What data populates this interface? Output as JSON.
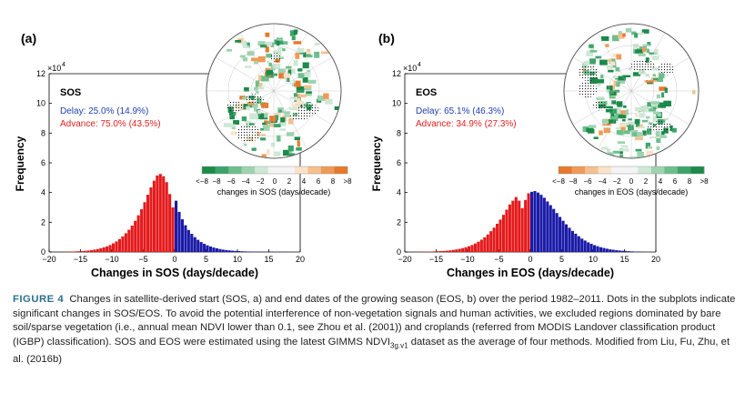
{
  "panels": [
    {
      "letter": "(a)",
      "legend_title": "SOS",
      "delay_text": "Delay: 25.0% (14.9%)",
      "advance_text": "Advance: 75.0% (43.5%)",
      "xlabel": "Changes in SOS (days/decade)",
      "ylabel": "Frequency",
      "y_multiplier": "×10",
      "y_exponent": "4",
      "colorbar_label": "changes in SOS (days/decade)",
      "colorbar_ticks": [
        "<−8",
        "−8",
        "−6",
        "−4",
        "−2",
        "0",
        "2",
        "4",
        "6",
        "8",
        ">8"
      ],
      "colorbar_reversed": false
    },
    {
      "letter": "(b)",
      "legend_title": "EOS",
      "delay_text": "Delay: 65.1% (46.3%)",
      "advance_text": "Advance: 34.9% (27.3%)",
      "xlabel": "Changes in EOS (days/decade)",
      "ylabel": "Frequency",
      "y_multiplier": "×10",
      "y_exponent": "4",
      "colorbar_label": "changes in EOS (days/decade)",
      "colorbar_ticks": [
        "<−8",
        "−8",
        "−6",
        "−4",
        "−2",
        "0",
        "2",
        "4",
        "6",
        "8",
        ">8"
      ],
      "colorbar_reversed": true
    }
  ],
  "colors": {
    "advance_red": "#e41a1c",
    "delay_blue": "#1a1aa8",
    "delay_text_blue": "#1f3fb0",
    "advance_text_red": "#e02020",
    "green_dark": "#1b8a4a",
    "orange_dark": "#e8782a"
  },
  "chart_data": [
    {
      "type": "bar",
      "panel": "a",
      "xlim": [
        -20,
        20
      ],
      "ylim": [
        0,
        12
      ],
      "y_scale_factor": 10000,
      "xticks": [
        -20,
        -15,
        -10,
        -5,
        0,
        5,
        10,
        15,
        20
      ],
      "yticks": [
        0,
        2,
        4,
        6,
        8,
        10,
        12
      ],
      "bin_width": 0.5,
      "bin_centers": [
        -17.75,
        -17.25,
        -16.75,
        -16.25,
        -15.75,
        -15.25,
        -14.75,
        -14.25,
        -13.75,
        -13.25,
        -12.75,
        -12.25,
        -11.75,
        -11.25,
        -10.75,
        -10.25,
        -9.75,
        -9.25,
        -8.75,
        -8.25,
        -7.75,
        -7.25,
        -6.75,
        -6.25,
        -5.75,
        -5.25,
        -4.75,
        -4.25,
        -3.75,
        -3.25,
        -2.75,
        -2.25,
        -1.75,
        -1.25,
        -0.75,
        -0.25,
        0.25,
        0.75,
        1.25,
        1.75,
        2.25,
        2.75,
        3.25,
        3.75,
        4.25,
        4.75,
        5.25,
        5.75,
        6.25,
        6.75,
        7.25,
        7.75,
        8.25,
        8.75,
        9.25,
        9.75,
        10.25,
        10.75,
        11.25,
        11.75,
        12.25,
        12.75,
        13.25,
        13.75,
        14.25,
        14.75,
        15.25,
        15.75,
        16.25,
        16.75,
        17.25,
        17.75
      ],
      "values": [
        0.01,
        0.02,
        0.02,
        0.03,
        0.04,
        0.05,
        0.06,
        0.08,
        0.1,
        0.12,
        0.16,
        0.2,
        0.25,
        0.31,
        0.38,
        0.47,
        0.58,
        0.71,
        0.87,
        1.05,
        1.26,
        1.5,
        1.78,
        2.1,
        2.47,
        2.88,
        3.35,
        3.85,
        4.35,
        4.8,
        5.15,
        5.25,
        5.1,
        4.7,
        3.9,
        3.0,
        3.45,
        2.7,
        2.2,
        1.8,
        1.48,
        1.22,
        1.0,
        0.82,
        0.67,
        0.55,
        0.45,
        0.37,
        0.3,
        0.25,
        0.2,
        0.16,
        0.13,
        0.11,
        0.09,
        0.07,
        0.06,
        0.05,
        0.04,
        0.03,
        0.03,
        0.02,
        0.02,
        0.02,
        0.01,
        0.01,
        0.01,
        0.01,
        0.01,
        0.01,
        0.01,
        0.01
      ],
      "series": [
        {
          "name": "Advance",
          "range": "x < 0"
        },
        {
          "name": "Delay",
          "range": "x > 0"
        }
      ]
    },
    {
      "type": "bar",
      "panel": "b",
      "xlim": [
        -20,
        20
      ],
      "ylim": [
        0,
        12
      ],
      "y_scale_factor": 10000,
      "xticks": [
        -20,
        -15,
        -10,
        -5,
        0,
        5,
        10,
        15,
        20
      ],
      "yticks": [
        0,
        2,
        4,
        6,
        8,
        10,
        12
      ],
      "bin_width": 0.5,
      "bin_centers": [
        -17.75,
        -17.25,
        -16.75,
        -16.25,
        -15.75,
        -15.25,
        -14.75,
        -14.25,
        -13.75,
        -13.25,
        -12.75,
        -12.25,
        -11.75,
        -11.25,
        -10.75,
        -10.25,
        -9.75,
        -9.25,
        -8.75,
        -8.25,
        -7.75,
        -7.25,
        -6.75,
        -6.25,
        -5.75,
        -5.25,
        -4.75,
        -4.25,
        -3.75,
        -3.25,
        -2.75,
        -2.25,
        -1.75,
        -1.25,
        -0.75,
        -0.25,
        0.25,
        0.75,
        1.25,
        1.75,
        2.25,
        2.75,
        3.25,
        3.75,
        4.25,
        4.75,
        5.25,
        5.75,
        6.25,
        6.75,
        7.25,
        7.75,
        8.25,
        8.75,
        9.25,
        9.75,
        10.25,
        10.75,
        11.25,
        11.75,
        12.25,
        12.75,
        13.25,
        13.75,
        14.25,
        14.75,
        15.25,
        15.75,
        16.25,
        16.75,
        17.25,
        17.75
      ],
      "values": [
        0.01,
        0.01,
        0.02,
        0.02,
        0.03,
        0.04,
        0.05,
        0.06,
        0.07,
        0.09,
        0.11,
        0.14,
        0.17,
        0.21,
        0.26,
        0.32,
        0.39,
        0.47,
        0.57,
        0.69,
        0.83,
        0.99,
        1.18,
        1.4,
        1.64,
        1.9,
        2.18,
        2.5,
        2.85,
        3.2,
        3.45,
        3.7,
        3.45,
        2.95,
        3.5,
        3.95,
        4.05,
        4.1,
        4.0,
        3.85,
        3.65,
        3.4,
        3.15,
        2.9,
        2.62,
        2.36,
        2.1,
        1.86,
        1.63,
        1.42,
        1.23,
        1.06,
        0.9,
        0.77,
        0.65,
        0.55,
        0.46,
        0.39,
        0.32,
        0.27,
        0.22,
        0.18,
        0.15,
        0.12,
        0.1,
        0.08,
        0.07,
        0.05,
        0.04,
        0.03,
        0.03,
        0.02
      ],
      "series": [
        {
          "name": "Advance",
          "range": "x < 0"
        },
        {
          "name": "Delay",
          "range": "x > 0"
        }
      ]
    }
  ]
}
